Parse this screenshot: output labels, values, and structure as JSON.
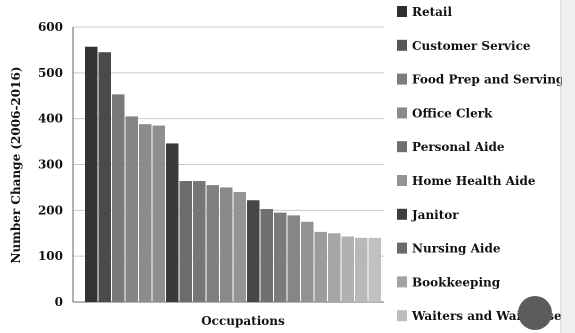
{
  "chart_data": {
    "type": "bar",
    "title": "",
    "xlabel": "Occupations",
    "ylabel": "Number Change (2006-2016)",
    "ylim": [
      0,
      600
    ],
    "y_ticks": [
      0,
      100,
      200,
      300,
      400,
      500,
      600
    ],
    "grid": true,
    "legend_position": "right",
    "values": [
      557,
      545,
      453,
      405,
      388,
      385,
      346,
      264,
      264,
      255,
      250,
      240,
      222,
      203,
      195,
      189,
      175,
      153,
      150,
      143,
      140,
      140
    ],
    "legend_entries": [
      {
        "label": "Retail",
        "color": "#2f2f2f"
      },
      {
        "label": "Customer Service",
        "color": "#555555"
      },
      {
        "label": "Food Prep and Serving",
        "color": "#7d7d7d"
      },
      {
        "label": "Office Clerk",
        "color": "#8a8a8a"
      },
      {
        "label": "Personal Aide",
        "color": "#6e6e6e"
      },
      {
        "label": "Home Health Aide",
        "color": "#949494"
      },
      {
        "label": "Janitor",
        "color": "#3e3e3e"
      },
      {
        "label": "Nursing Aide",
        "color": "#6a6a6a"
      },
      {
        "label": "Bookkeeping",
        "color": "#a2a2a2"
      },
      {
        "label": "Waiters and Waitresses",
        "color": "#bdbdbd"
      }
    ],
    "bar_colors": [
      "#333333",
      "#4a4a4a",
      "#7a7a7a",
      "#858585",
      "#8c8c8c",
      "#8f8f8f",
      "#3a3a3a",
      "#6c6c6c",
      "#767676",
      "#808080",
      "#8a8a8a",
      "#949494",
      "#474747",
      "#707070",
      "#7b7b7b",
      "#868686",
      "#929292",
      "#9c9c9c",
      "#a6a6a6",
      "#b0b0b0",
      "#b8b8b8",
      "#c0c0c0"
    ]
  }
}
